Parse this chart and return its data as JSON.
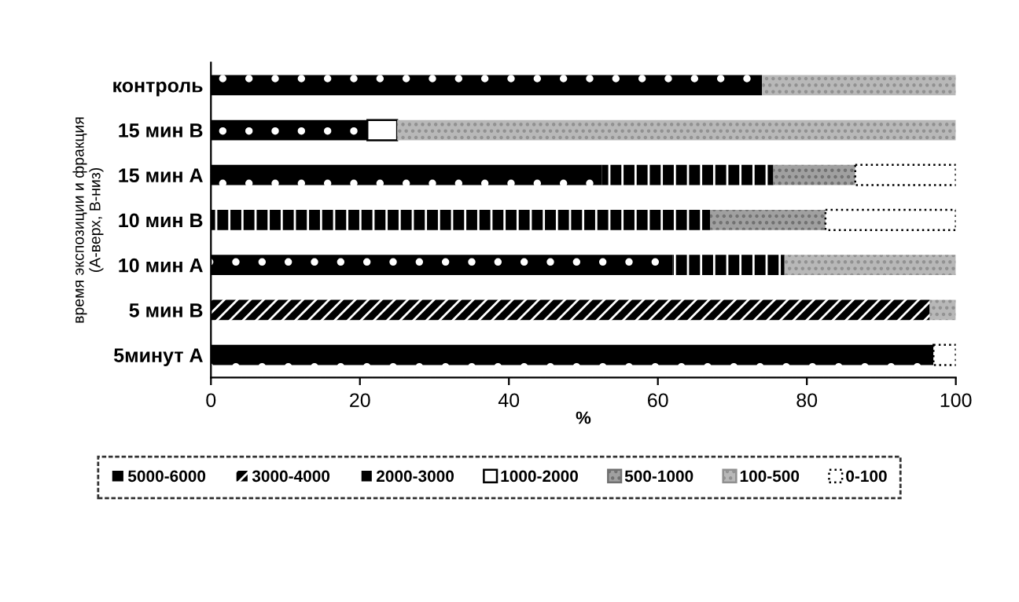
{
  "chart_data": {
    "type": "bar",
    "orientation": "horizontal",
    "stacked": true,
    "ylabel": "время экспозиции и фракция\n(А-верх, В-низ)",
    "xlabel": "%",
    "categories": [
      "контроль",
      "15 мин В",
      "15 мин А",
      "10 мин В",
      "10 мин А",
      "5 мин В",
      "5минут А"
    ],
    "series": [
      {
        "name": "5000-6000",
        "color": "#000000",
        "values": [
          74,
          21,
          52.5,
          0,
          62,
          0,
          97
        ]
      },
      {
        "name": "3000-4000",
        "color": "#000000",
        "values": [
          0,
          0,
          0,
          0,
          0,
          96.5,
          0
        ]
      },
      {
        "name": "2000-3000",
        "color": "#000000",
        "values": [
          0,
          0,
          23,
          67,
          15,
          0,
          0
        ]
      },
      {
        "name": "1000-2000",
        "color": "#ffffff",
        "values": [
          0,
          4,
          0,
          0,
          0,
          0,
          0
        ]
      },
      {
        "name": "500-1000",
        "color": "#a0a0a0",
        "values": [
          0,
          0,
          11,
          15.5,
          0,
          0,
          0
        ]
      },
      {
        "name": "100-500",
        "color": "#b8b8b8",
        "values": [
          26,
          75,
          0,
          0,
          23,
          3.5,
          0
        ]
      },
      {
        "name": "0-100",
        "color": "#ffffff",
        "values": [
          0,
          0,
          13.5,
          17.5,
          0,
          0,
          3
        ]
      }
    ],
    "xlim": [
      0,
      100
    ],
    "xticks": [
      0,
      20,
      40,
      60,
      80,
      100
    ],
    "grid": false,
    "legend": "bottom"
  }
}
